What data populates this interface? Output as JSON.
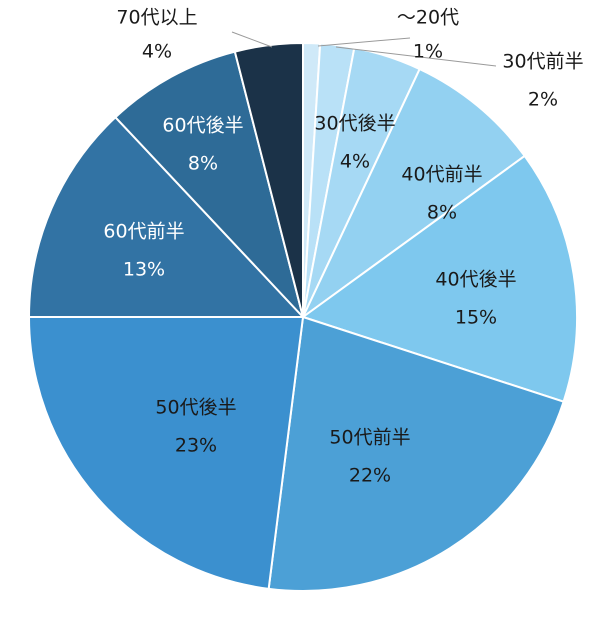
{
  "chart_data": {
    "type": "pie",
    "title": "",
    "categories": [
      "〜20代",
      "30代前半",
      "30代後半",
      "40代前半",
      "40代後半",
      "50代前半",
      "50代後半",
      "60代前半",
      "60代後半",
      "70代以上"
    ],
    "values": [
      1,
      2,
      4,
      8,
      15,
      22,
      23,
      13,
      8,
      4
    ],
    "percent_labels": [
      "1%",
      "2%",
      "4%",
      "8%",
      "15%",
      "22%",
      "23%",
      "13%",
      "8%",
      "4%"
    ],
    "colors": [
      "#cfe9f8",
      "#b9e1f7",
      "#a6d9f4",
      "#93d1f1",
      "#7ec8ee",
      "#4ca0d6",
      "#3b90cf",
      "#3273a4",
      "#2e6b97",
      "#1b3248"
    ],
    "label_colors": [
      "#1a1a1a",
      "#1a1a1a",
      "#1a1a1a",
      "#1a1a1a",
      "#1a1a1a",
      "#1a1a1a",
      "#1a1a1a",
      "#ffffff",
      "#ffffff",
      "#1a1a1a"
    ],
    "start_angle": "12 o'clock",
    "direction": "clockwise",
    "legend": "none"
  }
}
